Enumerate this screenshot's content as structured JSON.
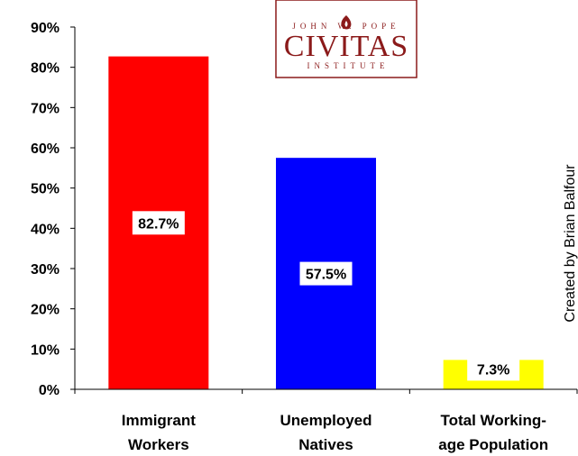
{
  "chart_data": {
    "type": "bar",
    "categories": [
      [
        "Immigrant",
        "Workers"
      ],
      [
        "Unemployed",
        "Natives"
      ],
      [
        "Total Working-",
        "age Population"
      ]
    ],
    "values": [
      82.7,
      57.5,
      7.3
    ],
    "data_labels": [
      "82.7%",
      "57.5%",
      "7.3%"
    ],
    "colors": [
      "#ff0000",
      "#0000ff",
      "#ffff00"
    ],
    "ylim": [
      0,
      90
    ],
    "yticks": [
      "0%",
      "10%",
      "20%",
      "30%",
      "40%",
      "50%",
      "60%",
      "70%",
      "80%",
      "90%"
    ],
    "grid": false,
    "title": "",
    "xlabel": "",
    "ylabel": ""
  },
  "logo": {
    "top_text": "JOHN W. POPE",
    "name": "CIVITAS",
    "bottom_text": "INSTITUTE",
    "color": "#8b1a1a"
  },
  "credit": "Created by Brian Balfour"
}
